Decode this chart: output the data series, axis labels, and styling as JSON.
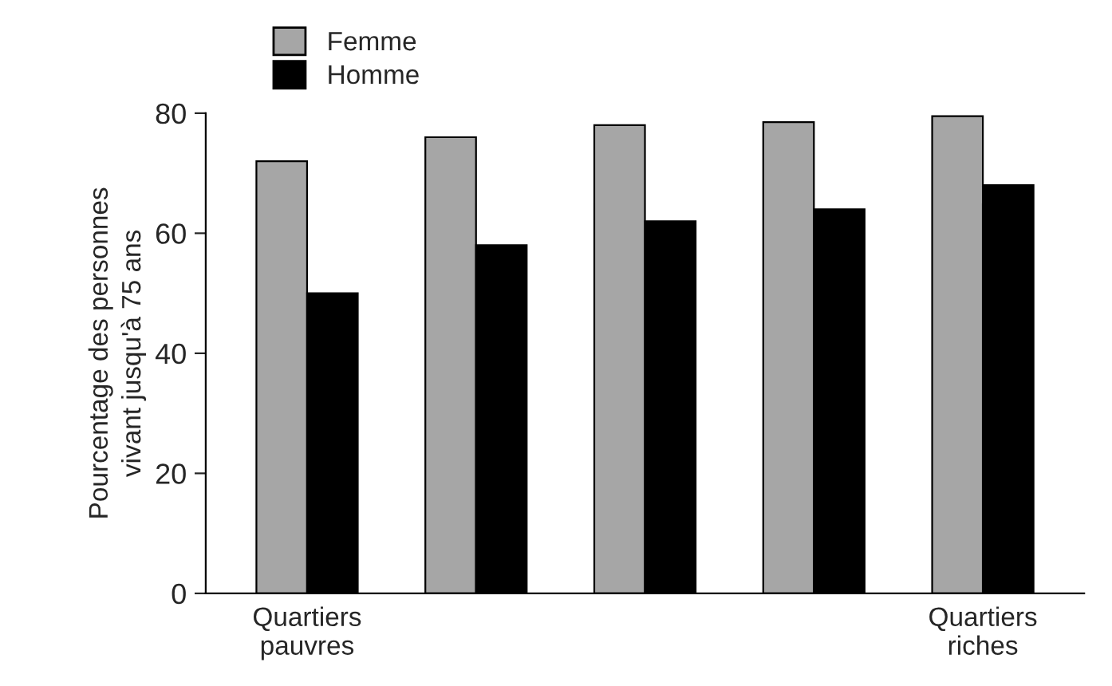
{
  "chart_data": {
    "type": "bar",
    "ylabel": "Pourcentage des personnes\nvivant jusqu'à 75 ans",
    "categories": [
      "Quartiers\npauvres",
      null,
      null,
      null,
      "Quartiers\nriches"
    ],
    "series": [
      {
        "name": "Femme",
        "color": "#a6a6a6",
        "values": [
          72,
          76,
          78,
          78.5,
          79.5
        ]
      },
      {
        "name": "Homme",
        "color": "#000000",
        "values": [
          50,
          58,
          62,
          64,
          68
        ]
      }
    ],
    "ylim": [
      0,
      80
    ],
    "yticks": [
      0,
      20,
      40,
      60,
      80
    ],
    "grid": false,
    "legend": "top left"
  }
}
